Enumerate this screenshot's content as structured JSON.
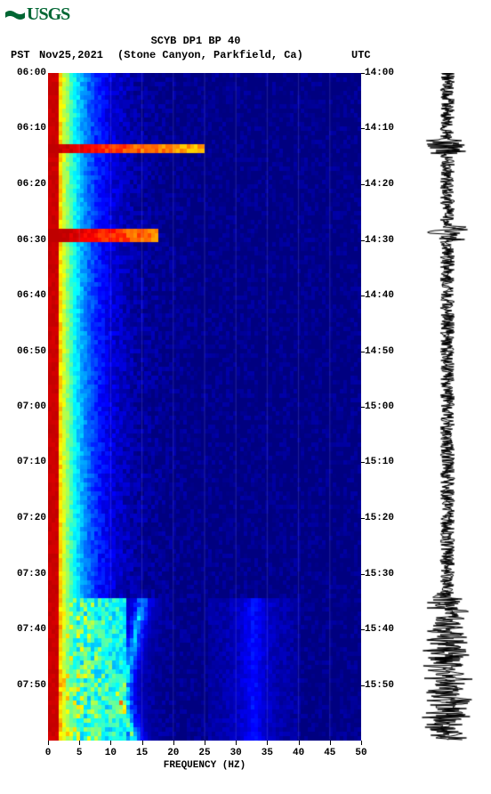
{
  "logo": {
    "text": "USGS",
    "color": "#006633"
  },
  "header": {
    "title_line1": "SCYB DP1 BP 40",
    "date": "Nov25,2021",
    "station": "(Stone Canyon, Parkfield, Ca)",
    "tz_left": "PST",
    "tz_right": "UTC"
  },
  "spectrogram": {
    "type": "spectrogram",
    "background_color": "#0000a8",
    "x_label": "FREQUENCY (HZ)",
    "xlim": [
      0,
      50
    ],
    "xtick_step": 5,
    "xticks": [
      0,
      5,
      10,
      15,
      20,
      25,
      30,
      35,
      40,
      45,
      50
    ],
    "grid_xlines": [
      5,
      10,
      15,
      20,
      25,
      30,
      35,
      40,
      45
    ],
    "y_left_ticks": [
      "06:00",
      "06:10",
      "06:20",
      "06:30",
      "06:40",
      "06:50",
      "07:00",
      "07:10",
      "07:20",
      "07:30",
      "07:40",
      "07:50"
    ],
    "y_right_ticks": [
      "14:00",
      "14:10",
      "14:20",
      "14:30",
      "14:40",
      "14:50",
      "15:00",
      "15:10",
      "15:20",
      "15:30",
      "15:40",
      "15:50"
    ],
    "y_tick_positions_pct": [
      0,
      8.33,
      16.67,
      25,
      33.33,
      41.67,
      50,
      58.33,
      66.67,
      75,
      83.33,
      91.67
    ],
    "colormap": [
      "#800000",
      "#ff0000",
      "#ff8000",
      "#ffff00",
      "#80ff00",
      "#00ff80",
      "#00ffff",
      "#0080ff",
      "#0000ff",
      "#0000a8"
    ],
    "low_freq_edge": {
      "width_pct": 3,
      "color_stops": [
        "#800000",
        "#ff0000",
        "#ff8000"
      ]
    },
    "horizontal_events": [
      {
        "time_pct": 11.0,
        "freq_start": 0,
        "freq_end_pct": 50,
        "intensity": "high"
      },
      {
        "time_pct": 24.0,
        "freq_start": 0,
        "freq_end_pct": 35,
        "intensity": "high"
      }
    ],
    "diffuse_region": {
      "start_pct": 78,
      "end_pct": 100
    },
    "font_size_ticks": 11,
    "font_weight": "bold",
    "font_family": "Courier New"
  },
  "seismogram": {
    "type": "waveform",
    "color": "#000000",
    "background": "#ffffff",
    "baseline_amplitude": 8,
    "burst_regions_pct": [
      [
        10,
        12
      ],
      [
        23,
        25
      ],
      [
        78,
        100
      ]
    ]
  }
}
